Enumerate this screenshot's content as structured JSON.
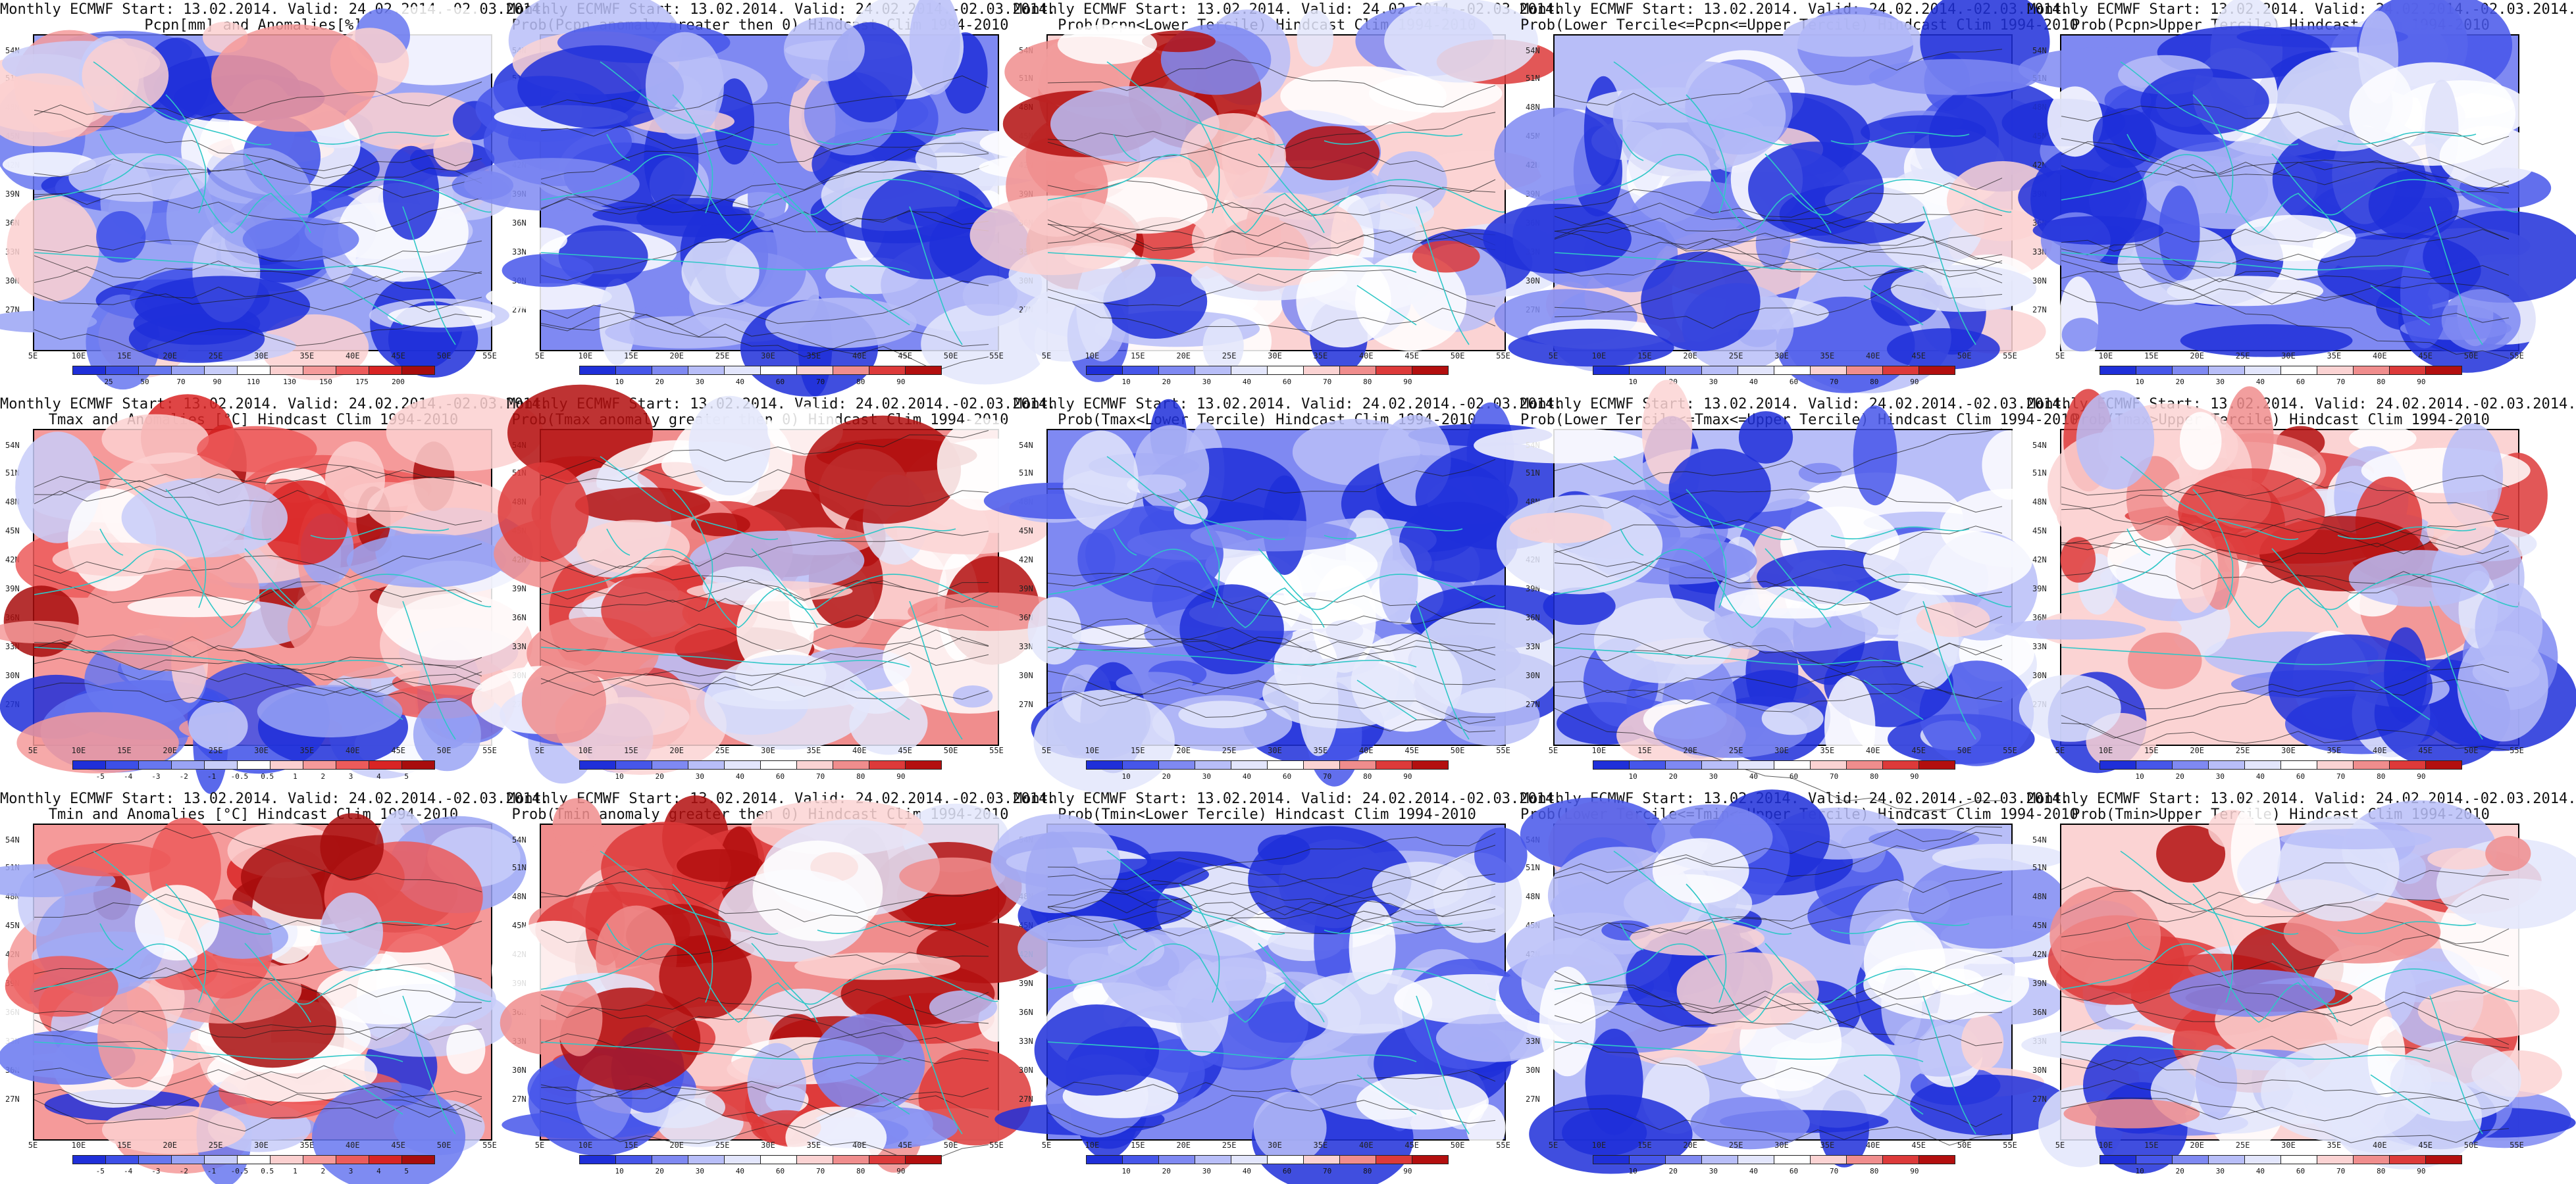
{
  "palettes": {
    "anomaly": [
      "#1f2fd9",
      "#3d4fe8",
      "#6777f0",
      "#9aa4f5",
      "#c8cdf9",
      "#ffffff",
      "#fbd0d0",
      "#f59a9a",
      "#ec5b5b",
      "#d92424",
      "#a80d0d"
    ],
    "prob": [
      "#1f2fd9",
      "#4656ea",
      "#7f89f2",
      "#b8bef8",
      "#e3e6fc",
      "#ffffff",
      "#fbd3d3",
      "#f08d8d",
      "#dd3a3a",
      "#b30f0f"
    ]
  },
  "colors": {
    "coast": "#2fc7c7",
    "contour": "#1a1a1a",
    "frame": "#000000"
  },
  "y_labels": [
    "54N",
    "51N",
    "48N",
    "45N",
    "42N",
    "39N",
    "36N",
    "33N",
    "30N",
    "27N"
  ],
  "x_labels": [
    "5E",
    "10E",
    "15E",
    "20E",
    "25E",
    "30E",
    "35E",
    "40E",
    "45E",
    "50E",
    "55E"
  ],
  "panels": [
    {
      "l1": "Monthly ECMWF Start: 13.02.2014. Valid: 24.02.2014.-02.03.2014.",
      "l2": "Pcpn[mm] and Anomalies[%]",
      "palette": "anomaly",
      "warm": -0.4,
      "cbar": [
        "25",
        "50",
        "70",
        "90",
        "110",
        "130",
        "150",
        "175",
        "200"
      ]
    },
    {
      "l1": "Monthly ECMWF Start: 13.02.2014. Valid: 24.02.2014.-02.03.2014.",
      "l2": "Prob(Pcpn anomaly greater then 0) Hindcast Clim 1994-2010",
      "palette": "prob",
      "warm": -0.5,
      "cbar": [
        "10",
        "20",
        "30",
        "40",
        "60",
        "70",
        "80",
        "90"
      ]
    },
    {
      "l1": "Monthly ECMWF Start: 13.02.2014. Valid: 24.02.2014.-02.03.2014.",
      "l2": "Prob(Pcpn<Lower Tercile) Hindcast Clim 1994-2010",
      "palette": "prob",
      "warm": 0.25,
      "cbar": [
        "10",
        "20",
        "30",
        "40",
        "60",
        "70",
        "80",
        "90"
      ]
    },
    {
      "l1": "Monthly ECMWF Start: 13.02.2014. Valid: 24.02.2014.-02.03.2014.",
      "l2": "Prob(Lower Tercile<=Pcpn<=Upper Tercile) Hindcast Clim 1994-2010",
      "palette": "prob",
      "warm": -0.45,
      "cbar": [
        "10",
        "20",
        "30",
        "40",
        "60",
        "70",
        "80",
        "90"
      ]
    },
    {
      "l1": "Monthly ECMWF Start: 13.02.2014. Valid: 24.02.2014.-02.03.2014.",
      "l2": "Prob(Pcpn>Upper Tercile) Hindcast Clim 1994-2010",
      "palette": "prob",
      "warm": -0.55,
      "cbar": [
        "10",
        "20",
        "30",
        "40",
        "60",
        "70",
        "80",
        "90"
      ]
    },
    {
      "l1": "Monthly ECMWF Start: 13.02.2014. Valid: 24.02.2014.-02.03.2014.",
      "l2": "Tmax and Anomalies [°C] Hindcast Clim 1994-2010",
      "palette": "anomaly",
      "warm": 0.45,
      "cbar": [
        "-5",
        "-4",
        "-3",
        "-2",
        "-1",
        "-0.5",
        "0.5",
        "1",
        "2",
        "3",
        "4",
        "5"
      ]
    },
    {
      "l1": "Monthly ECMWF Start: 13.02.2014. Valid: 24.02.2014.-02.03.2014.",
      "l2": "Prob(Tmax anomaly greater then 0) Hindcast Clim 1994-2010",
      "palette": "prob",
      "warm": 0.55,
      "cbar": [
        "10",
        "20",
        "30",
        "40",
        "60",
        "70",
        "80",
        "90"
      ]
    },
    {
      "l1": "Monthly ECMWF Start: 13.02.2014. Valid: 24.02.2014.-02.03.2014.",
      "l2": "Prob(Tmax<Lower Tercile) Hindcast Clim 1994-2010",
      "palette": "prob",
      "warm": -0.6,
      "cbar": [
        "10",
        "20",
        "30",
        "40",
        "60",
        "70",
        "80",
        "90"
      ]
    },
    {
      "l1": "Monthly ECMWF Start: 13.02.2014. Valid: 24.02.2014.-02.03.2014.",
      "l2": "Prob(Lower Tercile<=Tmax<=Upper Tercile) Hindcast Clim 1994-2010",
      "palette": "prob",
      "warm": -0.45,
      "cbar": [
        "10",
        "20",
        "30",
        "40",
        "60",
        "70",
        "80",
        "90"
      ]
    },
    {
      "l1": "Monthly ECMWF Start: 13.02.2014. Valid: 24.02.2014.-02.03.2014.",
      "l2": "Prob(Tmax>Upper Tercile) Hindcast Clim 1994-2010",
      "palette": "prob",
      "warm": 0.3,
      "cbar": [
        "10",
        "20",
        "30",
        "40",
        "60",
        "70",
        "80",
        "90"
      ]
    },
    {
      "l1": "Monthly ECMWF Start: 13.02.2014. Valid: 24.02.2014.-02.03.2014.",
      "l2": "Tmin and Anomalies [°C] Hindcast Clim 1994-2010",
      "palette": "anomaly",
      "warm": 0.35,
      "cbar": [
        "-5",
        "-4",
        "-3",
        "-2",
        "-1",
        "-0.5",
        "0.5",
        "1",
        "2",
        "3",
        "4",
        "5"
      ]
    },
    {
      "l1": "Monthly ECMWF Start: 13.02.2014. Valid: 24.02.2014.-02.03.2014.",
      "l2": "Prob(Tmin anomaly greater then 0) Hindcast Clim 1994-2010",
      "palette": "prob",
      "warm": 0.55,
      "cbar": [
        "10",
        "20",
        "30",
        "40",
        "60",
        "70",
        "80",
        "90"
      ]
    },
    {
      "l1": "Monthly ECMWF Start: 13.02.2014. Valid: 24.02.2014.-02.03.2014.",
      "l2": "Prob(Tmin<Lower Tercile) Hindcast Clim 1994-2010",
      "palette": "prob",
      "warm": -0.6,
      "cbar": [
        "10",
        "20",
        "30",
        "40",
        "60",
        "70",
        "80",
        "90"
      ]
    },
    {
      "l1": "Monthly ECMWF Start: 13.02.2014. Valid: 24.02.2014.-02.03.2014.",
      "l2": "Prob(Lower Tercile<=Tmin<=Upper Tercile) Hindcast Clim 1994-2010",
      "palette": "prob",
      "warm": -0.4,
      "cbar": [
        "10",
        "20",
        "30",
        "40",
        "60",
        "70",
        "80",
        "90"
      ]
    },
    {
      "l1": "Monthly ECMWF Start: 13.02.2014. Valid: 24.02.2014.-02.03.2014.",
      "l2": "Prob(Tmin>Upper Tercile) Hindcast Clim 1994-2010",
      "palette": "prob",
      "warm": 0.25,
      "cbar": [
        "10",
        "20",
        "30",
        "40",
        "60",
        "70",
        "80",
        "90"
      ]
    }
  ]
}
